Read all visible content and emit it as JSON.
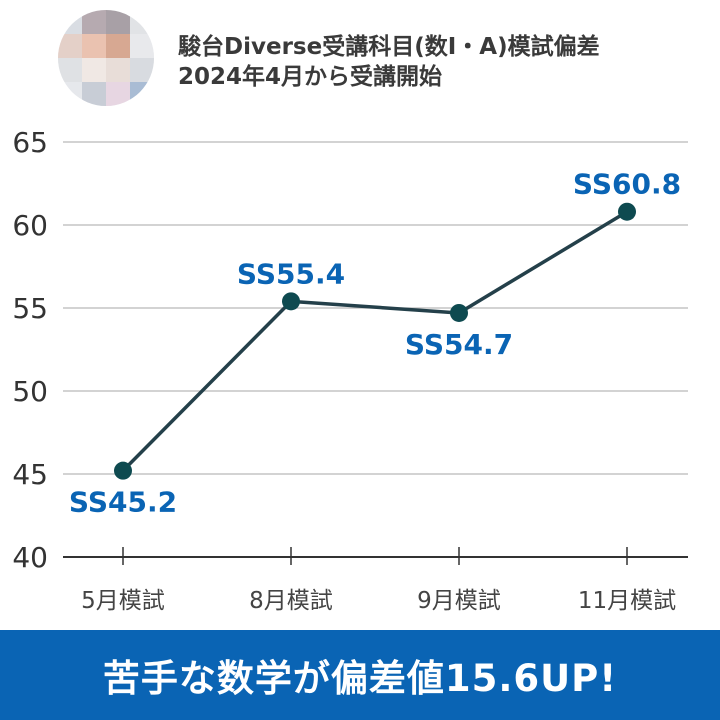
{
  "header": {
    "title_line1": "駿台Diverse受講科目(数Ⅰ・A)模試偏差",
    "title_line2": "2024年4月から受講開始"
  },
  "banner": {
    "text": "苦手な数学が偏差値15.6UP!"
  },
  "chart_data": {
    "type": "line",
    "categories": [
      "5月模試",
      "8月模試",
      "9月模試",
      "11月模試"
    ],
    "series": [
      {
        "values": [
          45.2,
          55.4,
          54.7,
          60.8
        ]
      }
    ],
    "data_labels": [
      "SS45.2",
      "SS55.4",
      "SS54.7",
      "SS60.8"
    ],
    "label_placement": [
      "below",
      "above",
      "below",
      "above"
    ],
    "yticks": [
      40,
      45,
      50,
      55,
      60,
      65
    ],
    "ylim": [
      40,
      65
    ],
    "grid": true,
    "colors": {
      "line": "#24404a",
      "marker": "#0e4a50",
      "label": "#0a64b4",
      "grid": "#b9b9b9",
      "axis": "#333333",
      "tick_text": "#333333",
      "category_text": "#444444"
    }
  },
  "colors": {
    "banner_bg": "#0a64b4",
    "title_text": "#3a3a3a"
  }
}
